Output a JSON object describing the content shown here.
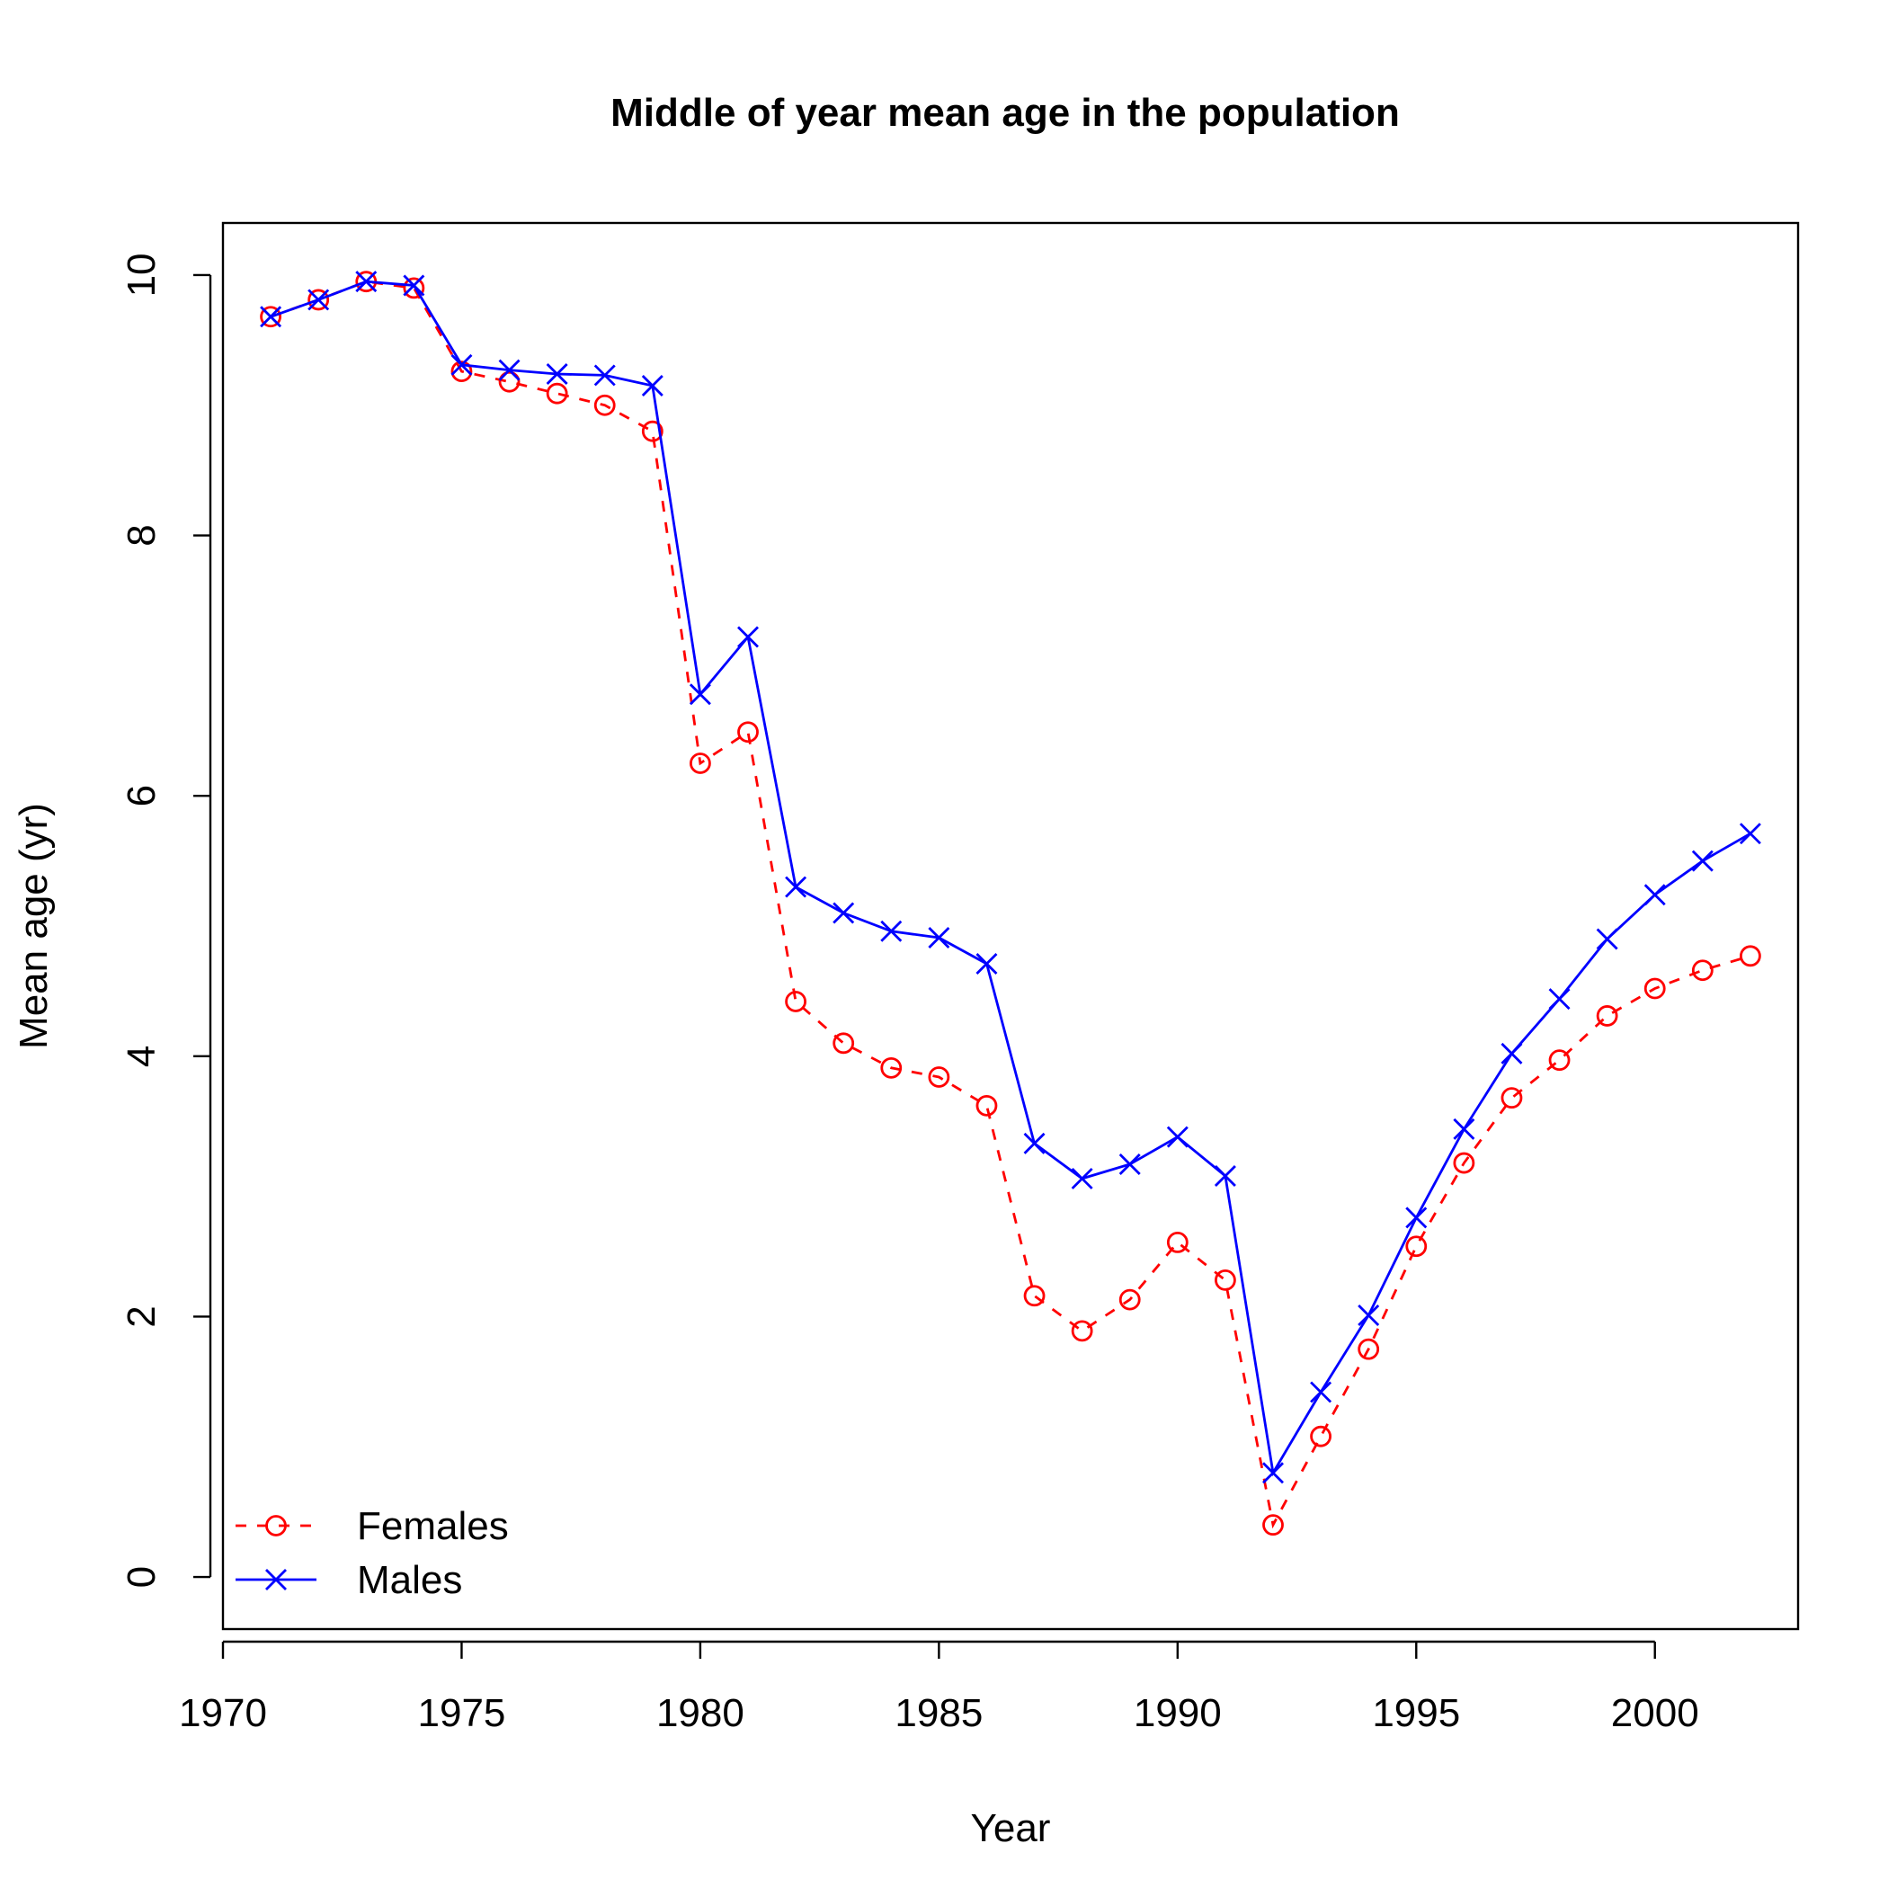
{
  "chart_data": {
    "type": "line",
    "title": "Middle of year mean age in the population",
    "xlabel": "Year",
    "ylabel": "Mean age (yr)",
    "xlim": [
      1970,
      2003
    ],
    "ylim": [
      -0.4,
      10.4
    ],
    "xticks": [
      1970,
      1975,
      1980,
      1985,
      1990,
      1995,
      2000
    ],
    "yticks": [
      0,
      2,
      4,
      6,
      8,
      10
    ],
    "grid": false,
    "legend_position": "bottom-left",
    "x": [
      1971,
      1972,
      1973,
      1974,
      1975,
      1976,
      1977,
      1978,
      1979,
      1980,
      1981,
      1982,
      1983,
      1984,
      1985,
      1986,
      1987,
      1988,
      1989,
      1990,
      1991,
      1992,
      1993,
      1994,
      1995,
      1996,
      1997,
      1998,
      1999,
      2000,
      2001,
      2002
    ],
    "series": [
      {
        "name": "Females",
        "color": "#ff0000",
        "line_style": "dashed",
        "marker": "circle",
        "values": [
          9.68,
          9.81,
          9.95,
          9.9,
          9.26,
          9.18,
          9.09,
          9.0,
          8.8,
          6.25,
          6.49,
          4.42,
          4.1,
          3.91,
          3.84,
          3.62,
          2.16,
          1.89,
          2.13,
          2.57,
          2.28,
          0.4,
          1.08,
          1.75,
          2.54,
          3.18,
          3.68,
          3.97,
          4.31,
          4.52,
          4.66,
          4.77
        ]
      },
      {
        "name": "Males",
        "color": "#0000ff",
        "line_style": "solid",
        "marker": "x",
        "values": [
          9.68,
          9.81,
          9.95,
          9.92,
          9.31,
          9.27,
          9.24,
          9.23,
          9.15,
          6.78,
          7.22,
          5.3,
          5.1,
          4.96,
          4.91,
          4.71,
          3.33,
          3.06,
          3.17,
          3.38,
          3.08,
          0.8,
          1.42,
          2.01,
          2.76,
          3.44,
          4.02,
          4.44,
          4.9,
          5.24,
          5.5,
          5.71
        ]
      }
    ]
  }
}
